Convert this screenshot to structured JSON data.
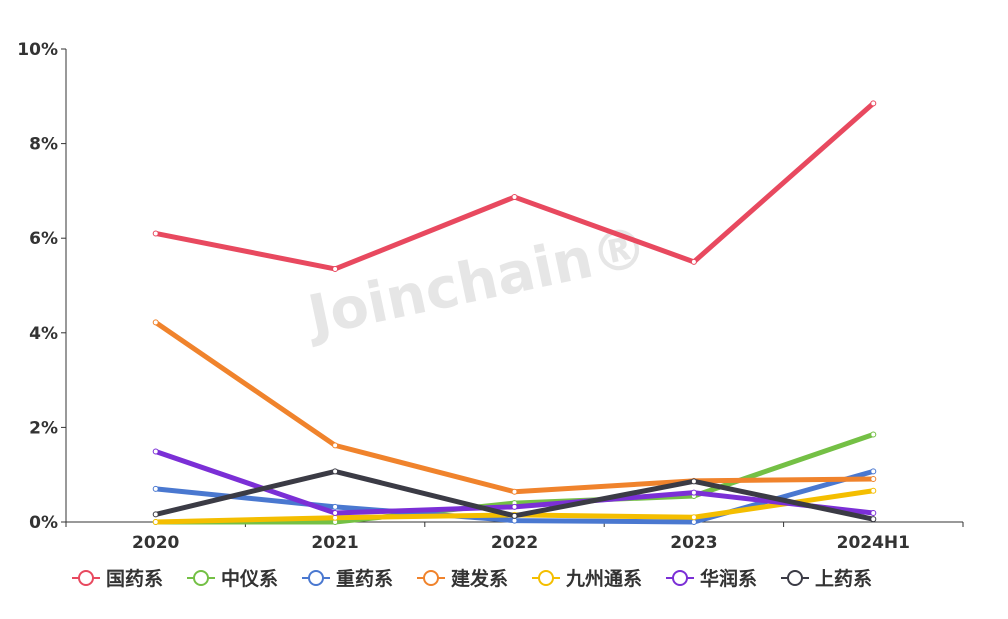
{
  "chart_data": {
    "type": "line",
    "categories": [
      "2020",
      "2021",
      "2022",
      "2023",
      "2024H1"
    ],
    "ylim": [
      0,
      10
    ],
    "yticks": [
      "0%",
      "2%",
      "4%",
      "6%",
      "8%",
      "10%"
    ],
    "ytick_values": [
      0,
      2,
      4,
      6,
      8,
      10
    ],
    "grid": false,
    "legend_position": "bottom",
    "watermark": "Joinchain®",
    "series": [
      {
        "name": "国药系",
        "color": "#e8495f",
        "values": [
          6.1,
          5.35,
          6.87,
          5.5,
          8.85
        ]
      },
      {
        "name": "中仪系",
        "color": "#74c045",
        "values": [
          0.0,
          0.0,
          0.4,
          0.55,
          1.85
        ]
      },
      {
        "name": "重药系",
        "color": "#4a78d0",
        "values": [
          0.7,
          0.32,
          0.03,
          0.0,
          1.07
        ]
      },
      {
        "name": "建发系",
        "color": "#f0832c",
        "values": [
          4.22,
          1.62,
          0.64,
          0.87,
          0.91
        ]
      },
      {
        "name": "九州通系",
        "color": "#f4be00",
        "values": [
          0.0,
          0.09,
          0.15,
          0.1,
          0.66
        ]
      },
      {
        "name": "华润系",
        "color": "#7b2fd6",
        "values": [
          1.49,
          0.19,
          0.32,
          0.62,
          0.19
        ]
      },
      {
        "name": "上药系",
        "color": "#3b3b45",
        "values": [
          0.16,
          1.07,
          0.13,
          0.86,
          0.06
        ]
      }
    ]
  }
}
